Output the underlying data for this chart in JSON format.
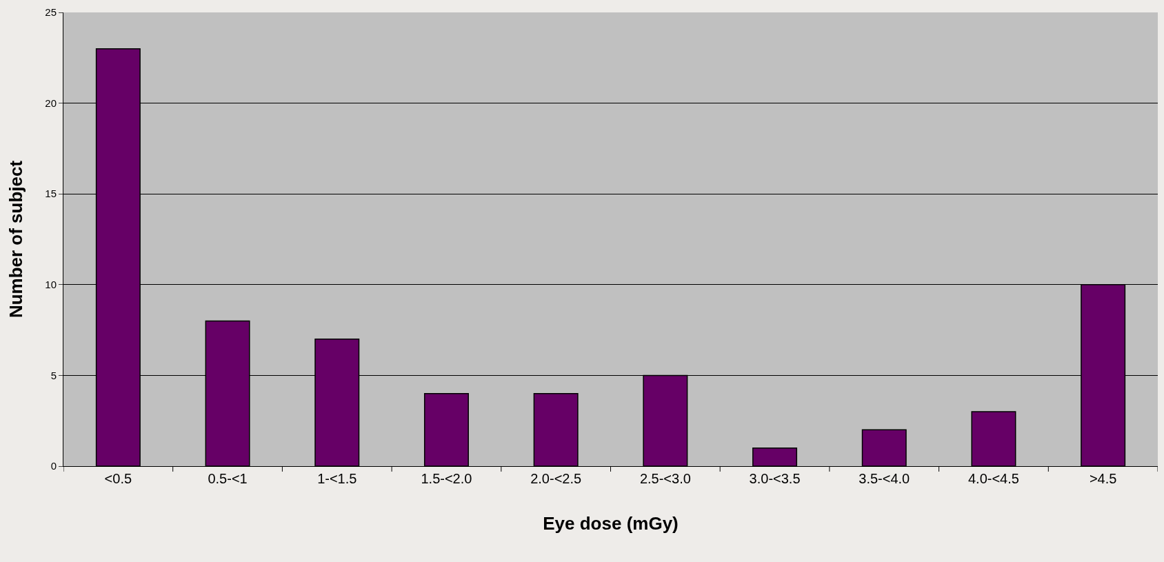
{
  "chart_data": {
    "type": "bar",
    "xlabel": "Eye dose (mGy)",
    "ylabel": "Number of subject",
    "categories": [
      "<0.5",
      "0.5-<1",
      "1-<1.5",
      "1.5-<2.0",
      "2.0-<2.5",
      "2.5-<3.0",
      "3.0-<3.5",
      "3.5-<4.0",
      "4.0-<4.5",
      ">4.5"
    ],
    "values": [
      23,
      8,
      7,
      4,
      4,
      5,
      1,
      2,
      3,
      10
    ],
    "color": "#660066",
    "ylim": [
      0,
      25
    ],
    "yticks": [
      0,
      5,
      10,
      15,
      20,
      25
    ],
    "grid": "y"
  }
}
